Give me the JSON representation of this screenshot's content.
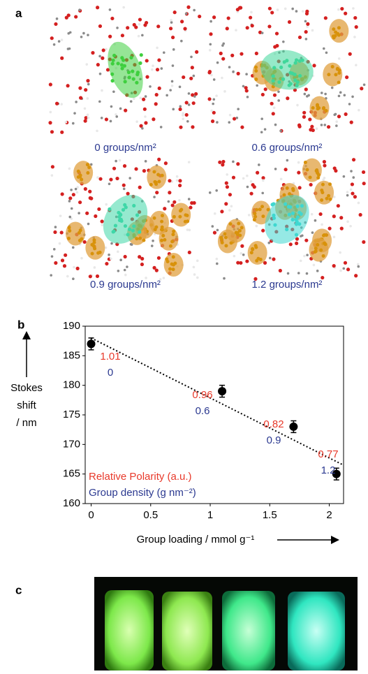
{
  "panel_a": {
    "label": "a",
    "captions": [
      "0 groups/nm²",
      "0.6 groups/nm²",
      "0.9 groups/nm²",
      "1.2 groups/nm²"
    ]
  },
  "chart_data": {
    "type": "scatter",
    "label": "b",
    "xlabel": "Group loading / mmol g⁻¹",
    "ylabel": [
      "Stokes",
      "shift",
      "/ nm"
    ],
    "series": [
      {
        "color": "#000000",
        "x": [
          0,
          1.1,
          1.7,
          2.06
        ],
        "values": [
          187,
          179,
          173,
          165
        ],
        "errors": [
          1,
          1,
          1,
          1
        ]
      },
      {
        "style": "dotted",
        "color": "#000000",
        "x": [
          0,
          2.12
        ],
        "values": [
          188,
          166.5
        ]
      }
    ],
    "xlim": [
      -0.05,
      2.12
    ],
    "xticks": [
      0,
      0.5,
      1,
      1.5,
      2
    ],
    "ylim": [
      160,
      190
    ],
    "yticks": [
      160,
      165,
      170,
      175,
      180,
      185,
      190
    ],
    "annotations": {
      "relative_polarity": {
        "name": "Relative Polarity (a.u.)",
        "color": "#e8392a",
        "values": [
          1.01,
          0.96,
          0.82,
          0.77
        ]
      },
      "group_density": {
        "name": "Group density (g nm⁻²)",
        "color": "#2b3990",
        "values": [
          0,
          0.6,
          0.9,
          1.2
        ]
      }
    }
  },
  "panel_c": {
    "label": "c"
  }
}
